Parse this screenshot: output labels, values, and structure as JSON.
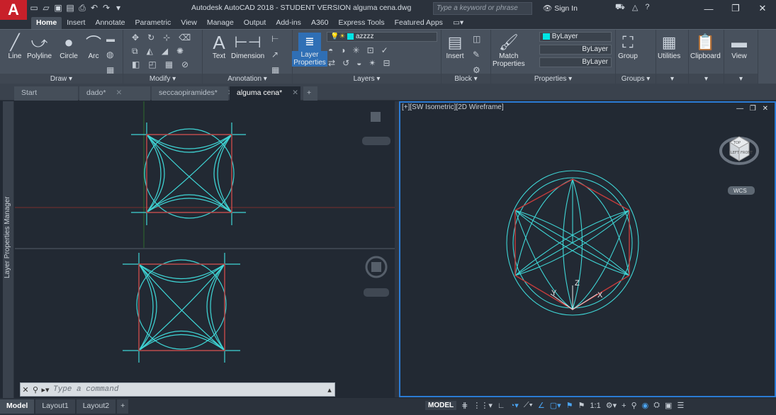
{
  "app": {
    "logo": "A",
    "title": "Autodesk AutoCAD 2018 - STUDENT VERSION    alguma cena.dwg"
  },
  "titlebar": {
    "search_placeholder": "Type a keyword or phrase",
    "signin": "Sign In"
  },
  "ribbon_tabs": [
    "Home",
    "Insert",
    "Annotate",
    "Parametric",
    "View",
    "Manage",
    "Output",
    "Add-ins",
    "A360",
    "Express Tools",
    "Featured Apps"
  ],
  "draw": {
    "title": "Draw ▾",
    "line": "Line",
    "polyline": "Polyline",
    "circle": "Circle",
    "arc": "Arc"
  },
  "modify": {
    "title": "Modify ▾"
  },
  "annotation": {
    "title": "Annotation ▾",
    "text": "Text",
    "dimension": "Dimension"
  },
  "layers": {
    "title": "Layers ▾",
    "layer_properties": "Layer\nProperties",
    "current_layer": "azzzz"
  },
  "block": {
    "title": "Block ▾",
    "insert": "Insert"
  },
  "properties": {
    "title": "Properties ▾",
    "match": "Match\nProperties",
    "color": "ByLayer",
    "linetype": "ByLayer",
    "lineweight": "ByLayer"
  },
  "groups": {
    "title": "Groups ▾",
    "group": "Group"
  },
  "utilities": {
    "label": "Utilities"
  },
  "clipboard": {
    "label": "Clipboard"
  },
  "view_btn": {
    "label": "View"
  },
  "doc_tabs": [
    "Start",
    "dado*",
    "seccaopiramides*",
    "alguma cena*"
  ],
  "side_panel": {
    "label": "Layer Properties Manager"
  },
  "viewports": {
    "right_label": "[+][SW Isometric][2D Wireframe]",
    "wcs": "WCS",
    "viewcube": {
      "top": "TOP",
      "left": "LEFT",
      "front": "FRONT"
    },
    "axes": {
      "x": "X",
      "y": "Y",
      "z": "Z"
    }
  },
  "command": {
    "placeholder": "Type a command"
  },
  "layout_tabs": [
    "Model",
    "Layout1",
    "Layout2"
  ],
  "status": {
    "model": "MODEL",
    "scale": "1:1"
  },
  "colors": {
    "accent_red": "#c8202a",
    "viewport_bg": "#222933",
    "geometry": "#3fd6d6",
    "square": "#c43c3c",
    "active_border": "#2b7bd4"
  }
}
